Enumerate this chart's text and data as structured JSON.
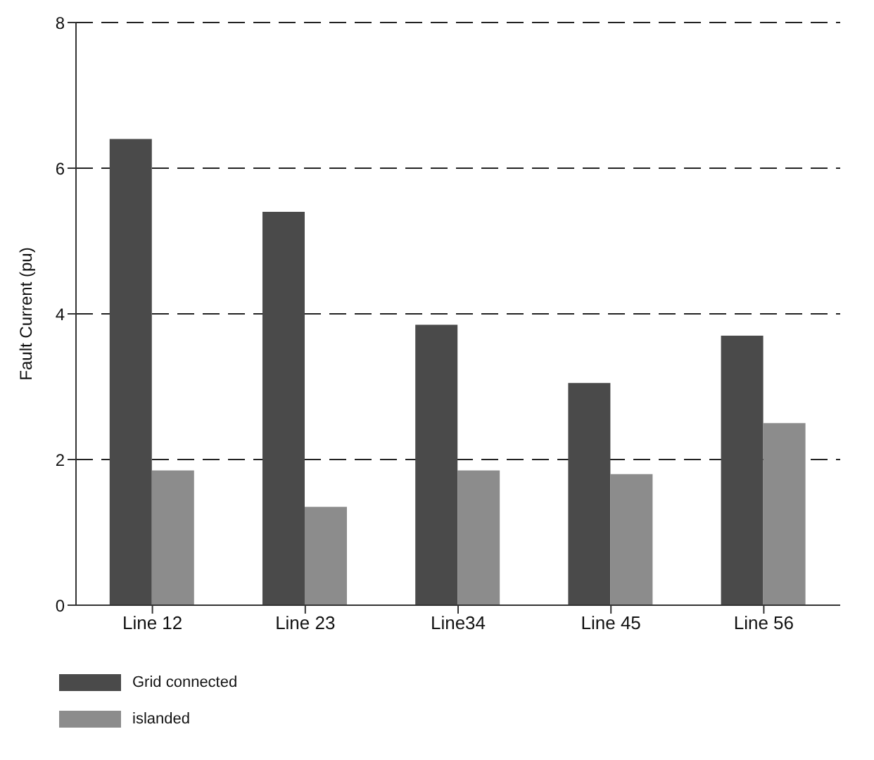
{
  "chart_data": {
    "type": "bar",
    "ylabel": "Fault Current (pu)",
    "categories": [
      "Line 12",
      "Line 23",
      "Line34",
      "Line 45",
      "Line 56"
    ],
    "series": [
      {
        "name": "Grid connected",
        "color": "#4a4a4a",
        "values": [
          6.4,
          5.4,
          3.85,
          3.05,
          3.7
        ]
      },
      {
        "name": "islanded",
        "color": "#8c8c8c",
        "values": [
          1.85,
          1.35,
          1.85,
          1.8,
          2.5
        ]
      }
    ],
    "ylim": [
      0,
      8
    ],
    "yticks": [
      0,
      2,
      4,
      6,
      8
    ],
    "grid": "y",
    "legend": "bottom left"
  }
}
